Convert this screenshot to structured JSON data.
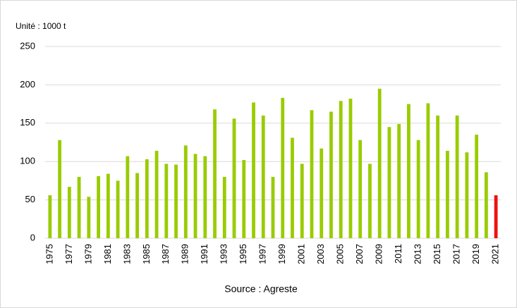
{
  "chart_data": {
    "type": "bar",
    "annotation": "Unité : 1000 t",
    "source": "Source : Agreste",
    "categories": [
      "1975",
      null,
      "1977",
      null,
      "1979",
      null,
      "1981",
      null,
      "1983",
      null,
      "1985",
      null,
      "1987",
      null,
      "1989",
      null,
      "1991",
      null,
      "1993",
      null,
      "1995",
      null,
      "1997",
      null,
      "1999",
      null,
      "2001",
      null,
      "2003",
      null,
      "2005",
      null,
      "2007",
      null,
      "2009",
      null,
      "2011",
      null,
      "2013",
      null,
      "2015",
      null,
      "2017",
      null,
      "2019",
      null,
      "2021"
    ],
    "values": [
      56,
      128,
      67,
      80,
      54,
      81,
      84,
      75,
      107,
      85,
      103,
      114,
      97,
      96,
      121,
      110,
      107,
      168,
      80,
      156,
      102,
      177,
      160,
      80,
      183,
      131,
      97,
      167,
      117,
      165,
      179,
      182,
      128,
      97,
      195,
      145,
      149,
      175,
      128,
      176,
      160,
      114,
      160,
      112,
      135,
      86,
      56
    ],
    "colors": [
      "#99cc00",
      "#99cc00",
      "#99cc00",
      "#99cc00",
      "#99cc00",
      "#99cc00",
      "#99cc00",
      "#99cc00",
      "#99cc00",
      "#99cc00",
      "#99cc00",
      "#99cc00",
      "#99cc00",
      "#99cc00",
      "#99cc00",
      "#99cc00",
      "#99cc00",
      "#99cc00",
      "#99cc00",
      "#99cc00",
      "#99cc00",
      "#99cc00",
      "#99cc00",
      "#99cc00",
      "#99cc00",
      "#99cc00",
      "#99cc00",
      "#99cc00",
      "#99cc00",
      "#99cc00",
      "#99cc00",
      "#99cc00",
      "#99cc00",
      "#99cc00",
      "#99cc00",
      "#99cc00",
      "#99cc00",
      "#99cc00",
      "#99cc00",
      "#99cc00",
      "#99cc00",
      "#99cc00",
      "#99cc00",
      "#99cc00",
      "#99cc00",
      "#99cc00",
      "#ee1111"
    ],
    "ylim": [
      0,
      250
    ],
    "yticks": [
      0,
      50,
      100,
      150,
      200,
      250
    ],
    "grid": true
  }
}
